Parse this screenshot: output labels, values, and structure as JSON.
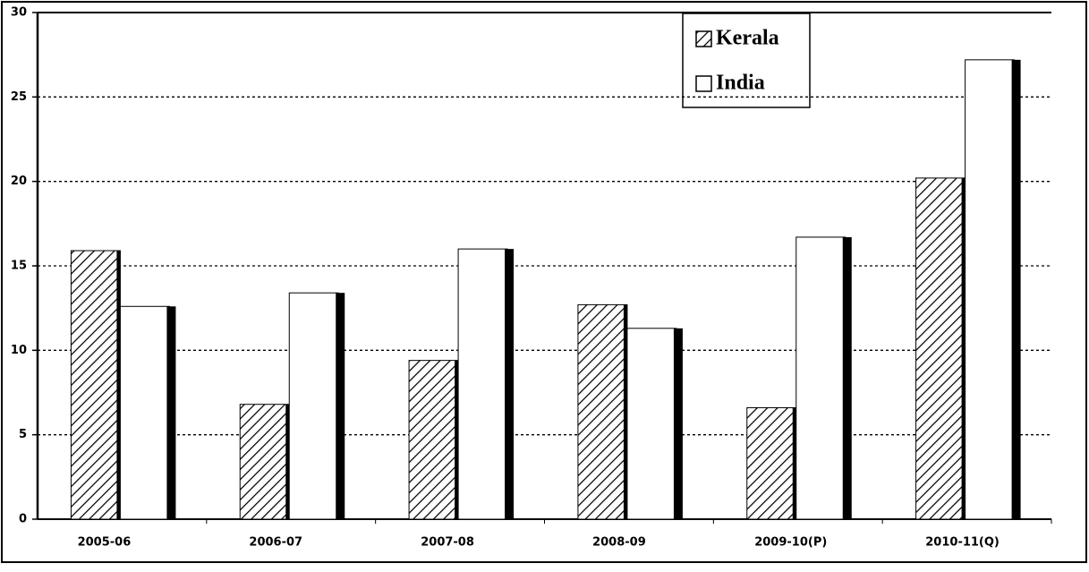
{
  "chart_data": {
    "type": "bar",
    "categories": [
      "2005-06",
      "2006-07",
      "2007-08",
      "2008-09",
      "2009-10(P)",
      "2010-11(Q)"
    ],
    "series": [
      {
        "name": "Kerala",
        "color": "#000000",
        "values": [
          15.9,
          6.8,
          9.4,
          12.7,
          6.6,
          20.2
        ]
      },
      {
        "name": "India",
        "color": "#ffffff",
        "values": [
          12.6,
          13.4,
          16.0,
          11.3,
          16.7,
          27.2
        ]
      }
    ],
    "ylim": [
      0,
      30
    ],
    "yticks": [
      0,
      5,
      10,
      15,
      20,
      25,
      30
    ],
    "grid": true,
    "legend": "top"
  }
}
